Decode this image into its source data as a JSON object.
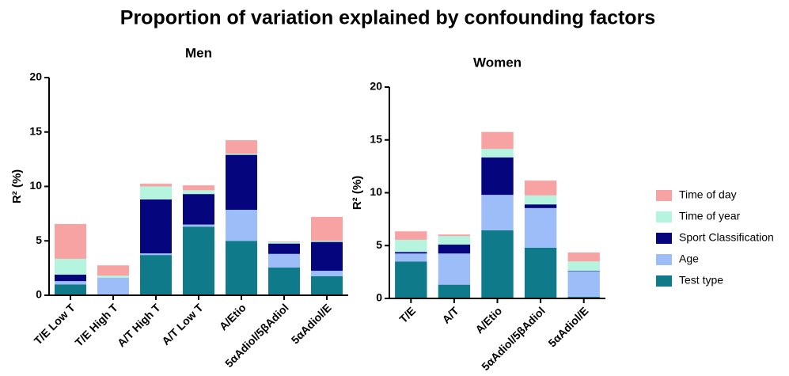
{
  "title": "Proportion of variation explained by confounding factors",
  "chart_data": [
    {
      "type": "stacked_bar",
      "title": "Men",
      "y_label": "R² (%)",
      "categories": [
        "T/E Low T",
        "T/E High T",
        "A/T High T",
        "A/T Low T",
        "A/Etio",
        "5αAdiol/5βAdiol",
        "5αAdiol/E"
      ],
      "ylim": [
        0,
        20
      ],
      "yticks": [
        0,
        5,
        10,
        15,
        20
      ],
      "series": [
        {
          "name": "Test type",
          "color": "#0e7a8a",
          "values": [
            1.0,
            0.05,
            3.7,
            6.3,
            5.0,
            2.55,
            1.75
          ]
        },
        {
          "name": "Age",
          "color": "#9dbdf8",
          "values": [
            0.3,
            1.55,
            0.15,
            0.2,
            2.85,
            1.25,
            0.5
          ]
        },
        {
          "name": "Sport Classification",
          "color": "#05057d",
          "values": [
            0.6,
            0.0,
            4.95,
            2.8,
            5.05,
            0.95,
            2.65
          ]
        },
        {
          "name": "Time of year",
          "color": "#b5f4de",
          "values": [
            1.45,
            0.2,
            1.2,
            0.35,
            0.1,
            0.15,
            0.1
          ]
        },
        {
          "name": "Time of day",
          "color": "#f8a3a3",
          "values": [
            3.2,
            0.95,
            0.25,
            0.45,
            1.25,
            0.05,
            2.2
          ]
        }
      ]
    },
    {
      "type": "stacked_bar",
      "title": "Women",
      "y_label": "R² (%)",
      "categories": [
        "T/E",
        "A/T",
        "A/Etio",
        "5αAdiol/5βAdiol",
        "5αAdiol/E"
      ],
      "ylim": [
        0,
        20
      ],
      "yticks": [
        0,
        5,
        10,
        15,
        20
      ],
      "series": [
        {
          "name": "Test type",
          "color": "#0e7a8a",
          "values": [
            3.5,
            1.3,
            6.45,
            4.8,
            0.15
          ]
        },
        {
          "name": "Age",
          "color": "#9dbdf8",
          "values": [
            0.75,
            2.95,
            3.35,
            3.75,
            2.4
          ]
        },
        {
          "name": "Sport Classification",
          "color": "#05057d",
          "values": [
            0.15,
            0.85,
            3.55,
            0.35,
            0.05
          ]
        },
        {
          "name": "Time of year",
          "color": "#b5f4de",
          "values": [
            1.15,
            0.8,
            0.8,
            0.85,
            0.9
          ]
        },
        {
          "name": "Time of day",
          "color": "#f8a3a3",
          "values": [
            0.8,
            0.15,
            1.6,
            1.4,
            0.85
          ]
        }
      ]
    }
  ]
}
